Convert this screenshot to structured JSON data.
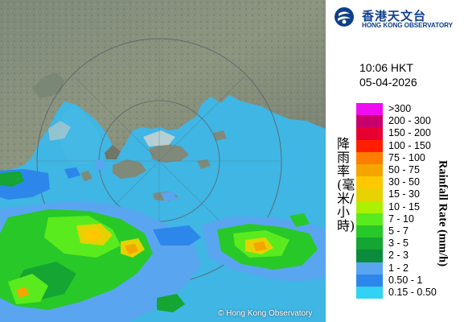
{
  "map": {
    "copyright": "© Hong Kong Observatory"
  },
  "header": {
    "logo_icon": "hko-logo-icon",
    "org_name_cn": "香港天文台",
    "org_name_en": "HONG KONG OBSERVATORY"
  },
  "timestamp": {
    "time": "10:06 HKT",
    "date": "05-04-2026"
  },
  "legend": {
    "title_cn": "降雨率(毫米/小時)",
    "title_en": "Rainfall Rate (mm/h)",
    "items": [
      {
        "label": ">300",
        "color": "#f00cf0"
      },
      {
        "label": "200 - 300",
        "color": "#c8006e"
      },
      {
        "label": "150 - 200",
        "color": "#e60032"
      },
      {
        "label": "100 - 150",
        "color": "#ff1e00"
      },
      {
        "label": "75 - 100",
        "color": "#ff7d00"
      },
      {
        "label": "50 - 75",
        "color": "#f5a500"
      },
      {
        "label": "30 - 50",
        "color": "#ffc800"
      },
      {
        "label": "15 - 30",
        "color": "#e6d200"
      },
      {
        "label": "10 - 15",
        "color": "#aaf000"
      },
      {
        "label": "7 - 10",
        "color": "#5aeb1e"
      },
      {
        "label": "5 - 7",
        "color": "#28c828"
      },
      {
        "label": "3 - 5",
        "color": "#14a532"
      },
      {
        "label": "2 - 3",
        "color": "#0a8c3c"
      },
      {
        "label": "1 - 2",
        "color": "#5aa5f0"
      },
      {
        "label": "0.50 - 1",
        "color": "#2d87eb"
      },
      {
        "label": "0.15 - 0.50",
        "color": "#32d2f5"
      }
    ]
  }
}
